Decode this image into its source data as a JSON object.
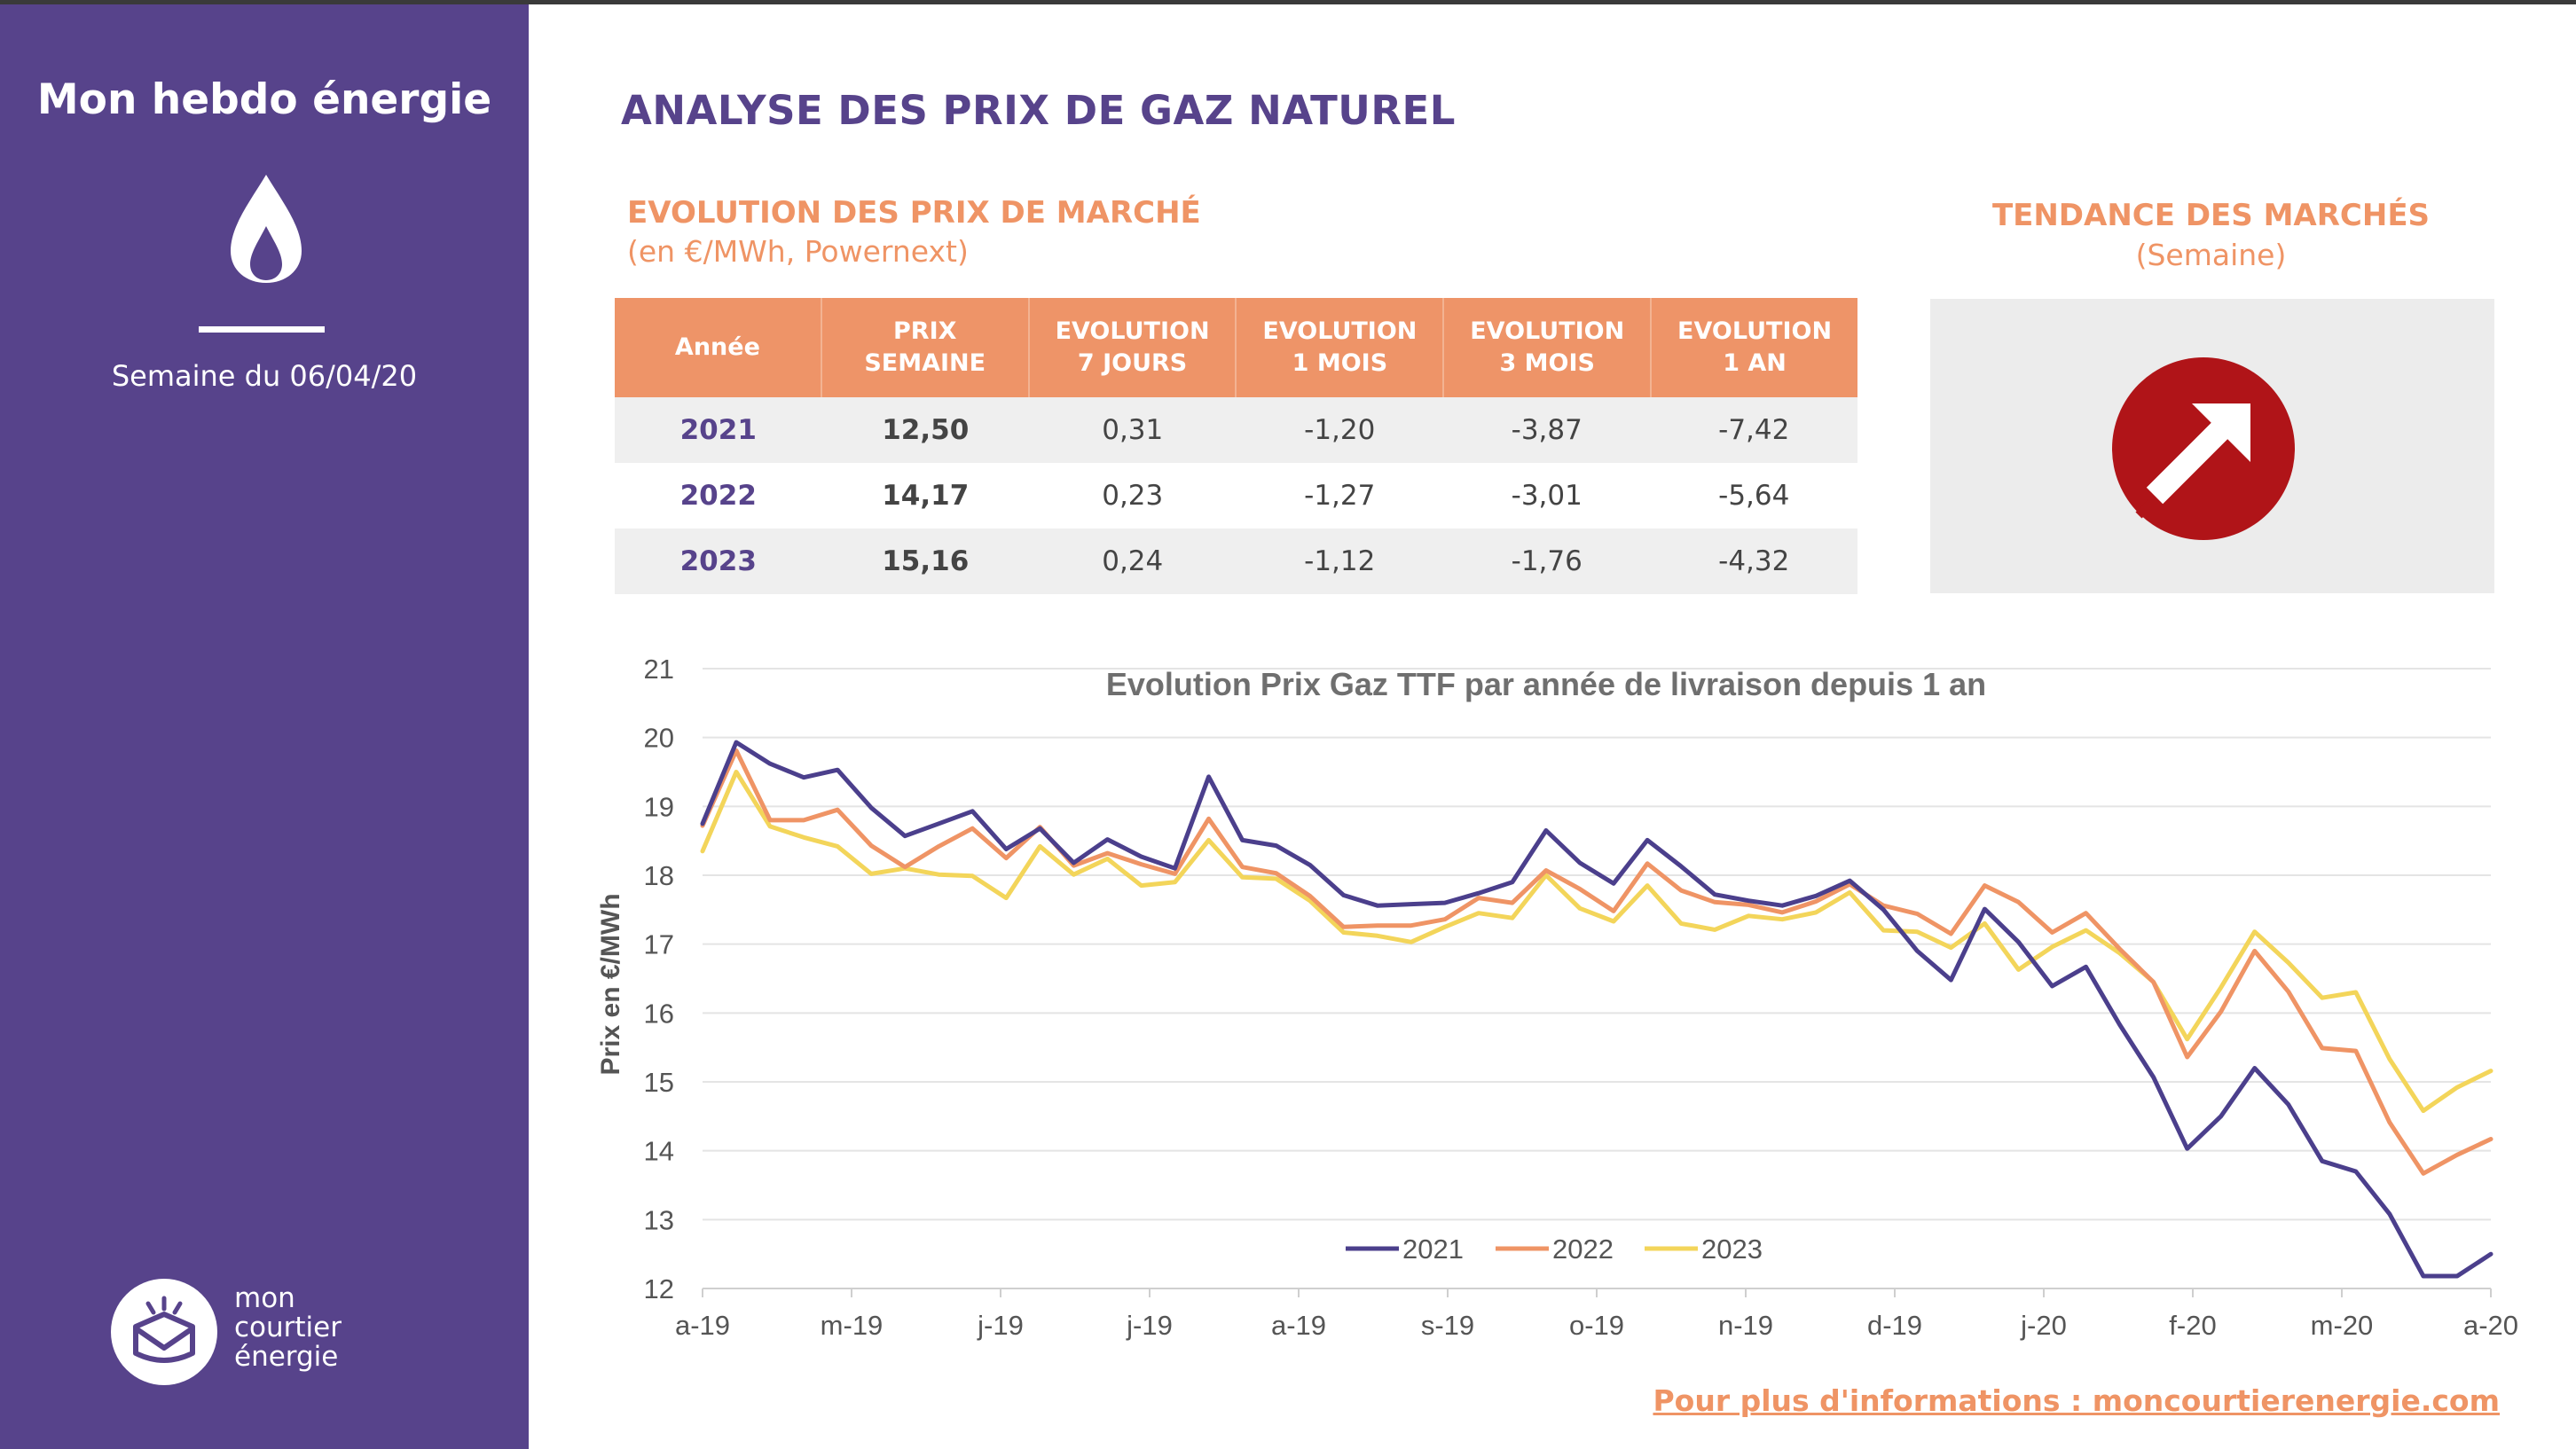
{
  "sidebar": {
    "title": "Mon hebdo énergie",
    "icon": "flame-icon",
    "week": "Semaine du 06/04/20",
    "logo": {
      "line1": "mon",
      "line2": "courtier",
      "line3": "énergie"
    }
  },
  "header": {
    "title": "ANALYSE DES PRIX DE GAZ NATUREL",
    "section_title": "EVOLUTION DES PRIX DE MARCHÉ",
    "section_unit": "(en €/MWh, Powernext)"
  },
  "table": {
    "headers": [
      {
        "line1": "Année",
        "line2": ""
      },
      {
        "line1": "PRIX",
        "line2": "SEMAINE"
      },
      {
        "line1": "EVOLUTION",
        "line2": "7 JOURS"
      },
      {
        "line1": "EVOLUTION",
        "line2": "1 MOIS"
      },
      {
        "line1": "EVOLUTION",
        "line2": "3 MOIS"
      },
      {
        "line1": "EVOLUTION",
        "line2": "1 AN"
      }
    ],
    "rows": [
      [
        "2021",
        "12,50",
        "0,31",
        "-1,20",
        "-3,87",
        "-7,42"
      ],
      [
        "2022",
        "14,17",
        "0,23",
        "-1,27",
        "-3,01",
        "-5,64"
      ],
      [
        "2023",
        "15,16",
        "0,24",
        "-1,12",
        "-1,76",
        "-4,32"
      ]
    ]
  },
  "trend": {
    "title": "TENDANCE DES MARCHÉS",
    "subtitle": "(Semaine)",
    "icon": "arrow-up-right-icon"
  },
  "footer": {
    "link": "Pour plus d'informations : moncourtierenergie.com"
  },
  "colors": {
    "purple": "#57438b",
    "orange": "#ef9465",
    "series_2021": "#4b3f8c",
    "series_2022": "#ef9465",
    "series_2023": "#f3d55a",
    "trend_red": "#b01418"
  },
  "chart_data": {
    "type": "line",
    "title": "Evolution Prix Gaz TTF par année de livraison depuis 1 an",
    "xlabel": "",
    "ylabel": "Prix en €/MWh",
    "ylim": [
      12,
      21
    ],
    "yticks": [
      12,
      13,
      14,
      15,
      16,
      17,
      18,
      19,
      20,
      21
    ],
    "xtick_labels": [
      "a-19",
      "m-19",
      "j-19",
      "j-19",
      "a-19",
      "s-19",
      "o-19",
      "n-19",
      "d-19",
      "j-20",
      "f-20",
      "m-20",
      "a-20"
    ],
    "grid": true,
    "legend": "bottom-center",
    "series": [
      {
        "name": "2021",
        "values": [
          18.75,
          19.93,
          19.62,
          19.42,
          19.53,
          18.98,
          18.57,
          18.75,
          18.93,
          18.38,
          18.68,
          18.18,
          18.52,
          18.27,
          18.1,
          19.43,
          18.51,
          18.43,
          18.15,
          17.71,
          17.56,
          17.58,
          17.6,
          17.74,
          17.9,
          18.65,
          18.18,
          17.88,
          18.51,
          18.13,
          17.72,
          17.63,
          17.56,
          17.7,
          17.92,
          17.5,
          16.9,
          16.48,
          17.51,
          17.03,
          16.39,
          16.67,
          15.83,
          15.07,
          14.03,
          14.5,
          15.2,
          14.67,
          13.85,
          13.7,
          13.08,
          12.18,
          12.18,
          12.5
        ]
      },
      {
        "name": "2022",
        "values": [
          18.72,
          19.81,
          18.8,
          18.8,
          18.95,
          18.43,
          18.12,
          18.42,
          18.68,
          18.25,
          18.7,
          18.14,
          18.32,
          18.16,
          18.02,
          18.82,
          18.12,
          18.03,
          17.7,
          17.25,
          17.27,
          17.27,
          17.36,
          17.67,
          17.6,
          18.07,
          17.8,
          17.48,
          18.17,
          17.78,
          17.61,
          17.57,
          17.46,
          17.62,
          17.87,
          17.56,
          17.44,
          17.15,
          17.85,
          17.61,
          17.17,
          17.45,
          16.93,
          16.45,
          15.36,
          16.02,
          16.9,
          16.31,
          15.49,
          15.45,
          14.41,
          13.67,
          13.94,
          14.17
        ]
      },
      {
        "name": "2023",
        "values": [
          18.35,
          19.5,
          18.71,
          18.55,
          18.42,
          18.02,
          18.1,
          18.01,
          17.99,
          17.67,
          18.42,
          18.01,
          18.24,
          17.85,
          17.9,
          18.51,
          17.97,
          17.95,
          17.63,
          17.17,
          17.12,
          17.03,
          17.25,
          17.45,
          17.38,
          18.0,
          17.52,
          17.33,
          17.85,
          17.3,
          17.21,
          17.41,
          17.36,
          17.46,
          17.75,
          17.2,
          17.18,
          16.95,
          17.3,
          16.63,
          16.96,
          17.2,
          16.87,
          16.45,
          15.62,
          16.37,
          17.18,
          16.73,
          16.22,
          16.3,
          15.33,
          14.58,
          14.92,
          15.16
        ]
      }
    ]
  }
}
